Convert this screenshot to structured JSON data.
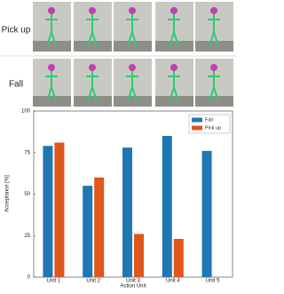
{
  "row_labels": [
    "Pick up",
    "Fall"
  ],
  "chart_data": {
    "type": "bar",
    "categories": [
      "Unit 1",
      "Unit 2",
      "Unit 3",
      "Unit 4",
      "Unit 5"
    ],
    "series": [
      {
        "name": "Fall",
        "color": "#1f77b4",
        "values": [
          79,
          55,
          78,
          85,
          76
        ]
      },
      {
        "name": "Pick up",
        "color": "#e0561b",
        "values": [
          81,
          60,
          26,
          23,
          null
        ]
      }
    ],
    "x_label": "Action Unit",
    "y_label": "Acceptance [%]",
    "ylim": [
      0,
      100
    ],
    "yticks": [
      0,
      25,
      50,
      75,
      100
    ],
    "legend": "upper right"
  }
}
